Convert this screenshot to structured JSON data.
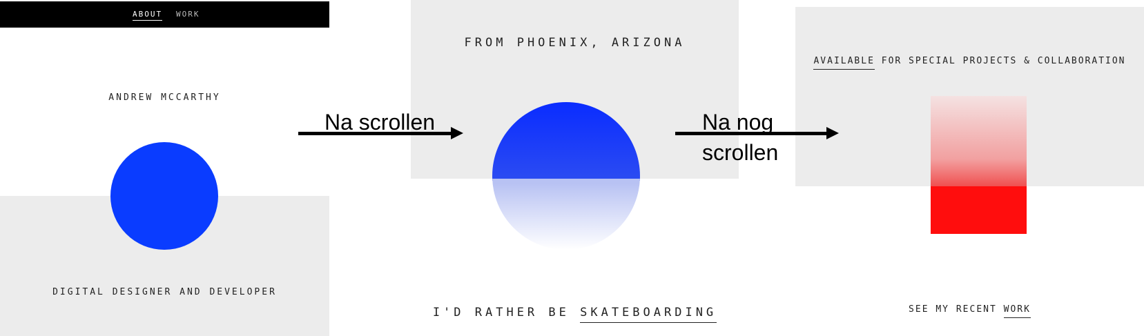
{
  "panel1": {
    "nav": {
      "items": [
        {
          "label": "ABOUT",
          "active": true
        },
        {
          "label": "WORK",
          "active": false
        }
      ]
    },
    "name": "ANDREW MCCARTHY",
    "role": "DIGITAL DESIGNER AND DEVELOPER"
  },
  "panel2": {
    "headline": "FROM PHOENIX, ARIZONA",
    "tagline_prefix": "I'D RATHER BE ",
    "tagline_link": "SKATEBOARDING"
  },
  "panel3": {
    "headline_link": "AVAILABLE",
    "headline_rest": " FOR SPECIAL PROJECTS & COLLABORATION",
    "cta_prefix": "SEE MY RECENT ",
    "cta_link": "WORK"
  },
  "annotations": {
    "arrow1": "Na scrollen",
    "arrow2_line1": "Na nog",
    "arrow2_line2": "scrollen"
  },
  "colors": {
    "accent_blue": "#0a3cff",
    "accent_red": "#ff0d0d",
    "panel_gray": "#ececec",
    "nav_black": "#000000"
  }
}
